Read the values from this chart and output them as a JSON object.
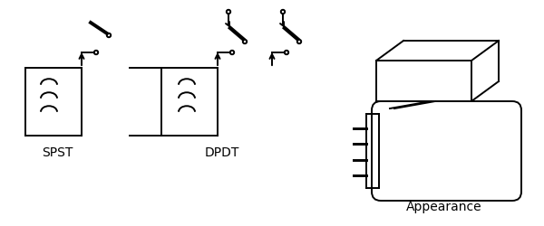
{
  "labels": {
    "spst": "SPST",
    "dpdt": "DPDT",
    "appearance": "Appearance"
  },
  "bg_color": "#ffffff",
  "line_color": "#000000",
  "linewidth": 1.4,
  "figsize": [
    6.0,
    2.51
  ],
  "dpi": 100
}
